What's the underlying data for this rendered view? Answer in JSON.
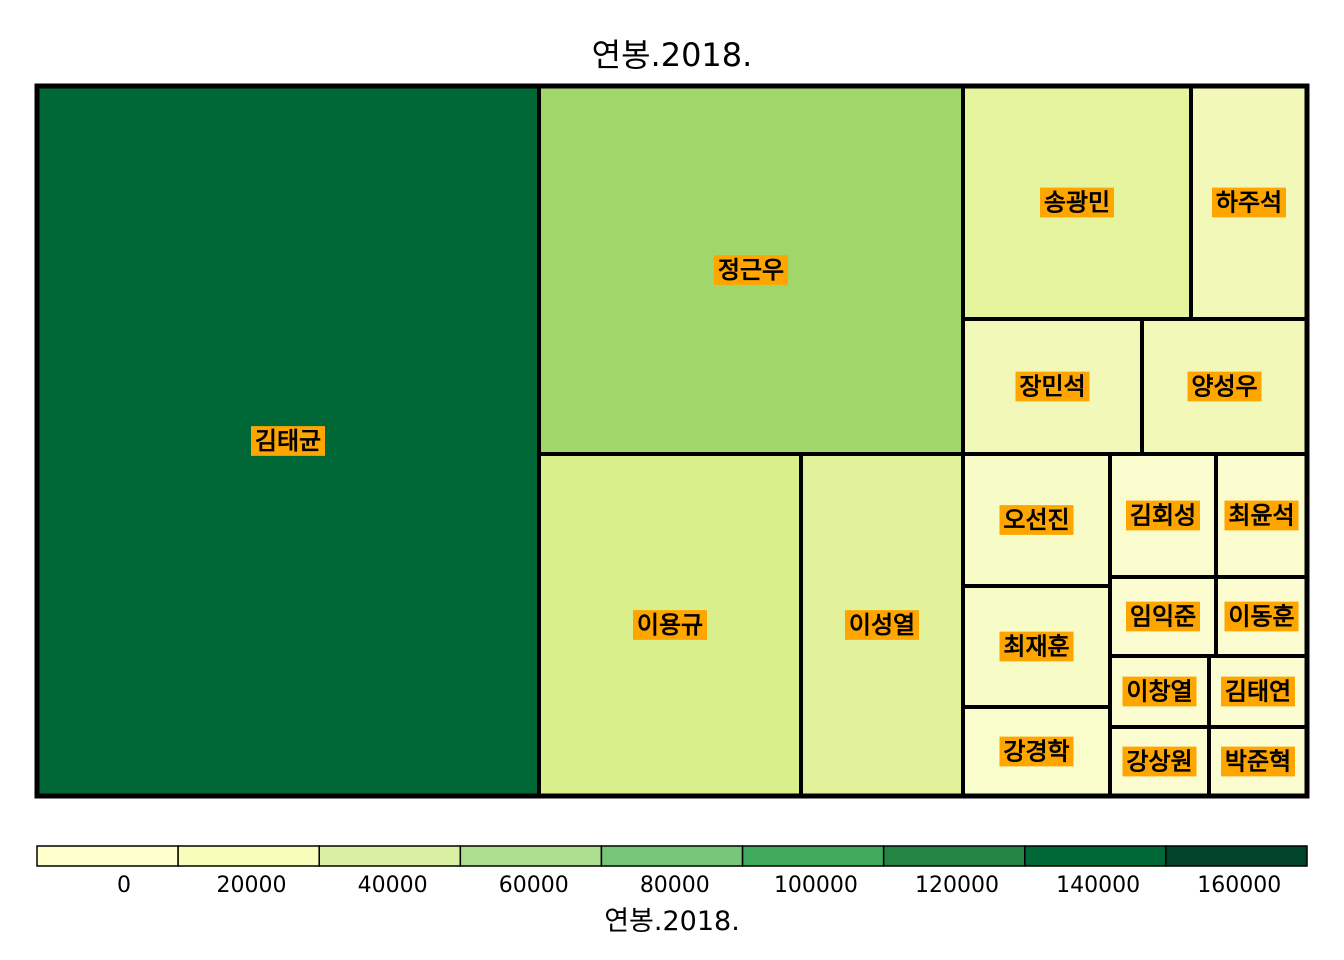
{
  "chart_data": {
    "type": "treemap",
    "title": "연봉.2018.",
    "legend_title": "연봉.2018.",
    "legend_placement": "bottom",
    "legend_ticks": [
      "0",
      "20000",
      "40000",
      "60000",
      "80000",
      "100000",
      "120000",
      "140000",
      "160000"
    ],
    "legend_colors": [
      "#ffffcc",
      "#f7fcb9",
      "#d9f0a3",
      "#addd8e",
      "#78c679",
      "#41ab5d",
      "#238443",
      "#006837",
      "#004529"
    ],
    "items": [
      {
        "name": "김태균",
        "value": 140000,
        "color": "#006837"
      },
      {
        "name": "정근우",
        "value": 70000,
        "color": "#a1d76a"
      },
      {
        "name": "이용규",
        "value": 25000,
        "color": "#d9ef8b"
      },
      {
        "name": "이성열",
        "value": 15000,
        "color": "#e2f29b"
      },
      {
        "name": "송광민",
        "value": 12000,
        "color": "#e6f59d"
      },
      {
        "name": "하주석",
        "value": 6000,
        "color": "#f2f9b8"
      },
      {
        "name": "장민석",
        "value": 6000,
        "color": "#f2f9b8"
      },
      {
        "name": "양성우",
        "value": 6000,
        "color": "#f2f9b8"
      },
      {
        "name": "오선진",
        "value": 3500,
        "color": "#f7fbc6"
      },
      {
        "name": "최재훈",
        "value": 3500,
        "color": "#f7fbc6"
      },
      {
        "name": "강경학",
        "value": 2800,
        "color": "#f9fccb"
      },
      {
        "name": "김회성",
        "value": 2000,
        "color": "#fafccd"
      },
      {
        "name": "최윤석",
        "value": 1800,
        "color": "#fafccd"
      },
      {
        "name": "임익준",
        "value": 1400,
        "color": "#fbfdd0"
      },
      {
        "name": "이동훈",
        "value": 1400,
        "color": "#fbfdd0"
      },
      {
        "name": "이창열",
        "value": 1200,
        "color": "#fbfdd0"
      },
      {
        "name": "김태연",
        "value": 1200,
        "color": "#fbfdd0"
      },
      {
        "name": "강상원",
        "value": 1100,
        "color": "#fbfdd0"
      },
      {
        "name": "박준혁",
        "value": 1100,
        "color": "#fbfdd0"
      }
    ]
  }
}
